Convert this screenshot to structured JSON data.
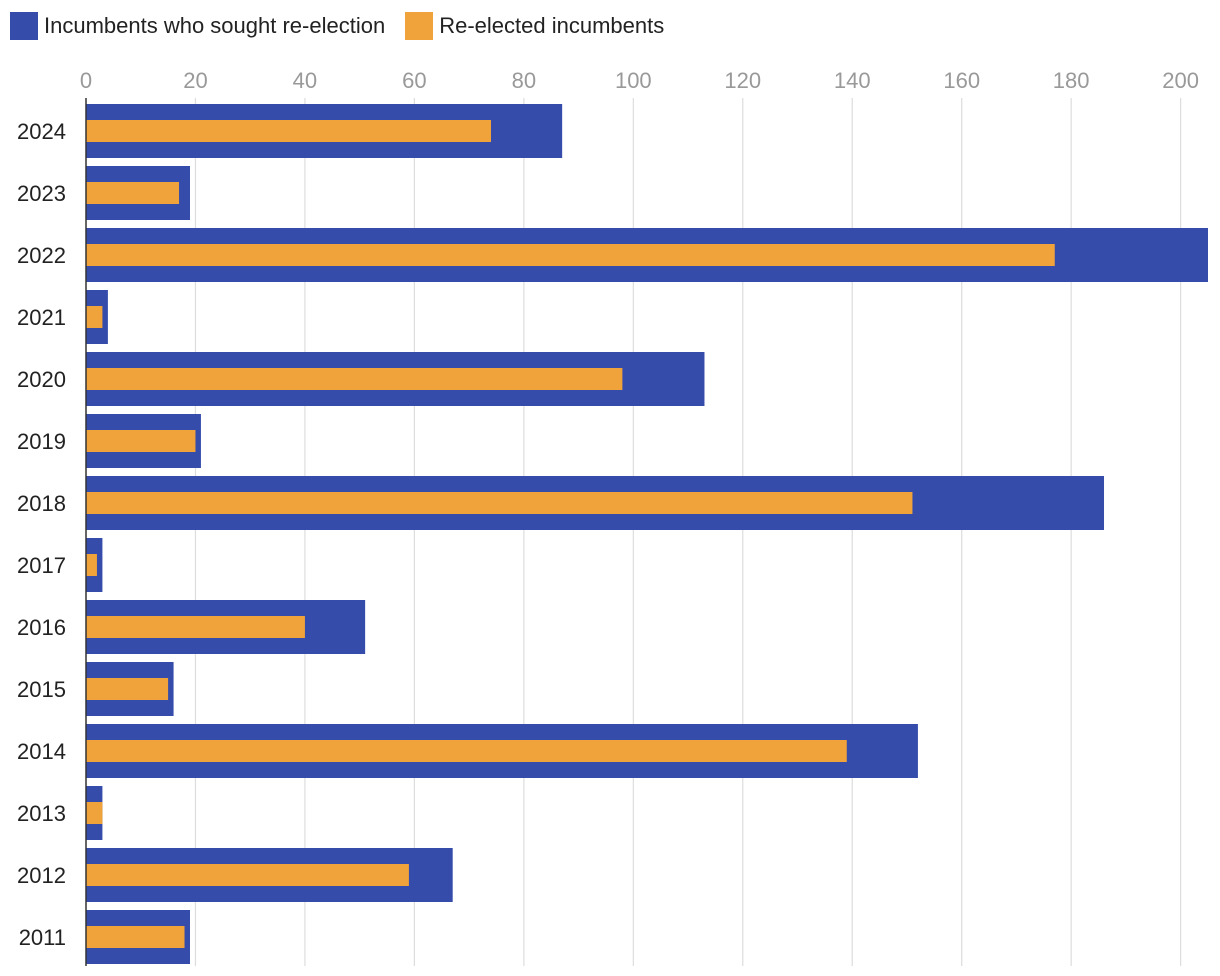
{
  "chart_data": {
    "type": "bar",
    "orientation": "horizontal",
    "categories": [
      "2024",
      "2023",
      "2022",
      "2021",
      "2020",
      "2019",
      "2018",
      "2017",
      "2016",
      "2015",
      "2014",
      "2013",
      "2012",
      "2011"
    ],
    "series": [
      {
        "name": "Incumbents who sought re-election",
        "color": "#354CAB",
        "values": [
          87,
          19,
          205,
          4,
          113,
          21,
          186,
          3,
          51,
          16,
          152,
          3,
          67,
          19
        ]
      },
      {
        "name": "Re-elected incumbents",
        "color": "#F0A33A",
        "values": [
          74,
          17,
          177,
          3,
          98,
          20,
          151,
          2,
          40,
          15,
          139,
          3,
          59,
          18
        ]
      }
    ],
    "xticks": [
      "0",
      "20",
      "40",
      "60",
      "80",
      "100",
      "120",
      "140",
      "160",
      "180",
      "200"
    ],
    "xlim": [
      0,
      205
    ],
    "title": "",
    "xlabel": "",
    "ylabel": "",
    "grid": true,
    "legend_position": "top-left",
    "tick_color": "#999999",
    "grid_color": "#DDDDDD",
    "axis_color": "#333333"
  }
}
